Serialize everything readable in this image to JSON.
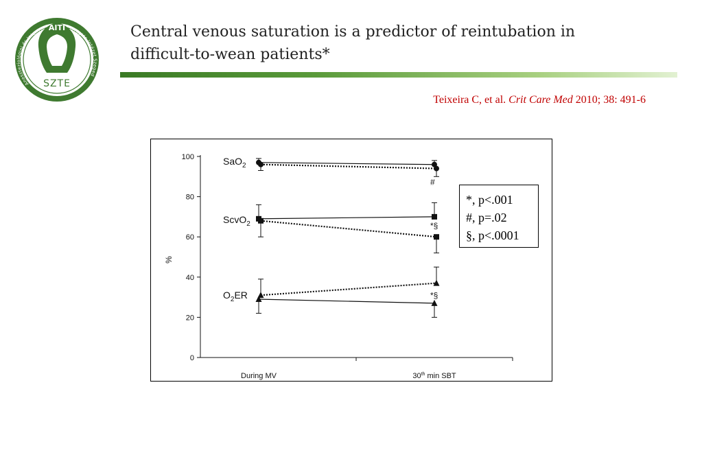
{
  "logo": {
    "ring_top": "AITI",
    "ring_left": "Aneszteziológiai és Intenzív",
    "ring_right": "Terápiás Intézet Szeged",
    "center": "SZTE",
    "color": "#3f7a30"
  },
  "header": {
    "title_line1": "Central venous saturation is a predictor of reintubation in",
    "title_line2": "difficult-to-wean patients*"
  },
  "citation": {
    "prefix": "Teixeira C, et al. ",
    "journal": "Crit Care Med",
    "suffix": " 2010; 38: 491-6"
  },
  "legend_box": {
    "lines": [
      "*, p<.001",
      "#, p=.02",
      "§, p<.0001"
    ]
  },
  "chart_data": {
    "type": "line",
    "ylabel": "%",
    "xlabel": "",
    "ylim": [
      0,
      100
    ],
    "yticks": [
      0,
      20,
      40,
      60,
      80,
      100
    ],
    "categories": [
      "During MV",
      "30th min SBT"
    ],
    "groups": [
      {
        "label": "SaO2",
        "marker": "circle",
        "series": [
          {
            "style": "solid",
            "values": [
              97,
              96
            ],
            "err": [
              2,
              2
            ]
          },
          {
            "style": "dotted",
            "values": [
              96,
              94
            ],
            "err": [
              3,
              4
            ]
          }
        ],
        "annotation": "#"
      },
      {
        "label": "ScvO2",
        "marker": "square",
        "series": [
          {
            "style": "solid",
            "values": [
              69,
              70
            ],
            "err": [
              7,
              7
            ]
          },
          {
            "style": "dotted",
            "values": [
              68,
              60
            ],
            "err": [
              8,
              8
            ]
          }
        ],
        "annotation": "*§"
      },
      {
        "label": "O2ER",
        "marker": "triangle",
        "series": [
          {
            "style": "solid",
            "values": [
              29,
              27
            ],
            "err": [
              7,
              7
            ]
          },
          {
            "style": "dotted",
            "values": [
              31,
              37
            ],
            "err": [
              8,
              8
            ]
          }
        ],
        "annotation": "*§"
      }
    ]
  }
}
